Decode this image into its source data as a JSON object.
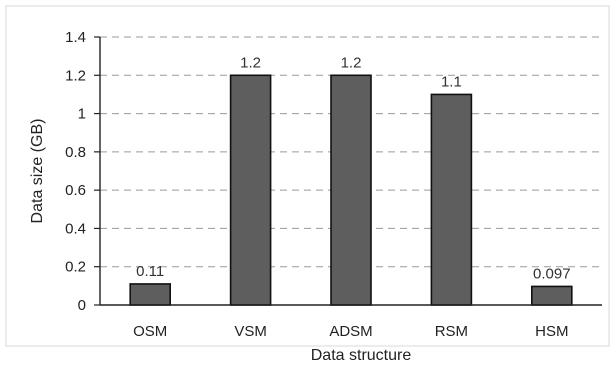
{
  "chart_data": {
    "type": "bar",
    "categories": [
      "OSM",
      "VSM",
      "ADSM",
      "RSM",
      "HSM"
    ],
    "values": [
      0.11,
      1.2,
      1.2,
      1.1,
      0.097
    ],
    "data_labels": [
      "0.11",
      "1.2",
      "1.2",
      "1.1",
      "0.097"
    ],
    "xlabel": "Data structure",
    "ylabel": "Data size (GB)",
    "ylim": [
      0,
      1.4
    ],
    "yticks": [
      "0",
      "0.2",
      "0.4",
      "0.6",
      "0.8",
      "1",
      "1.2",
      "1.4"
    ],
    "grid": true,
    "bar_color": "#5e5e5e"
  }
}
